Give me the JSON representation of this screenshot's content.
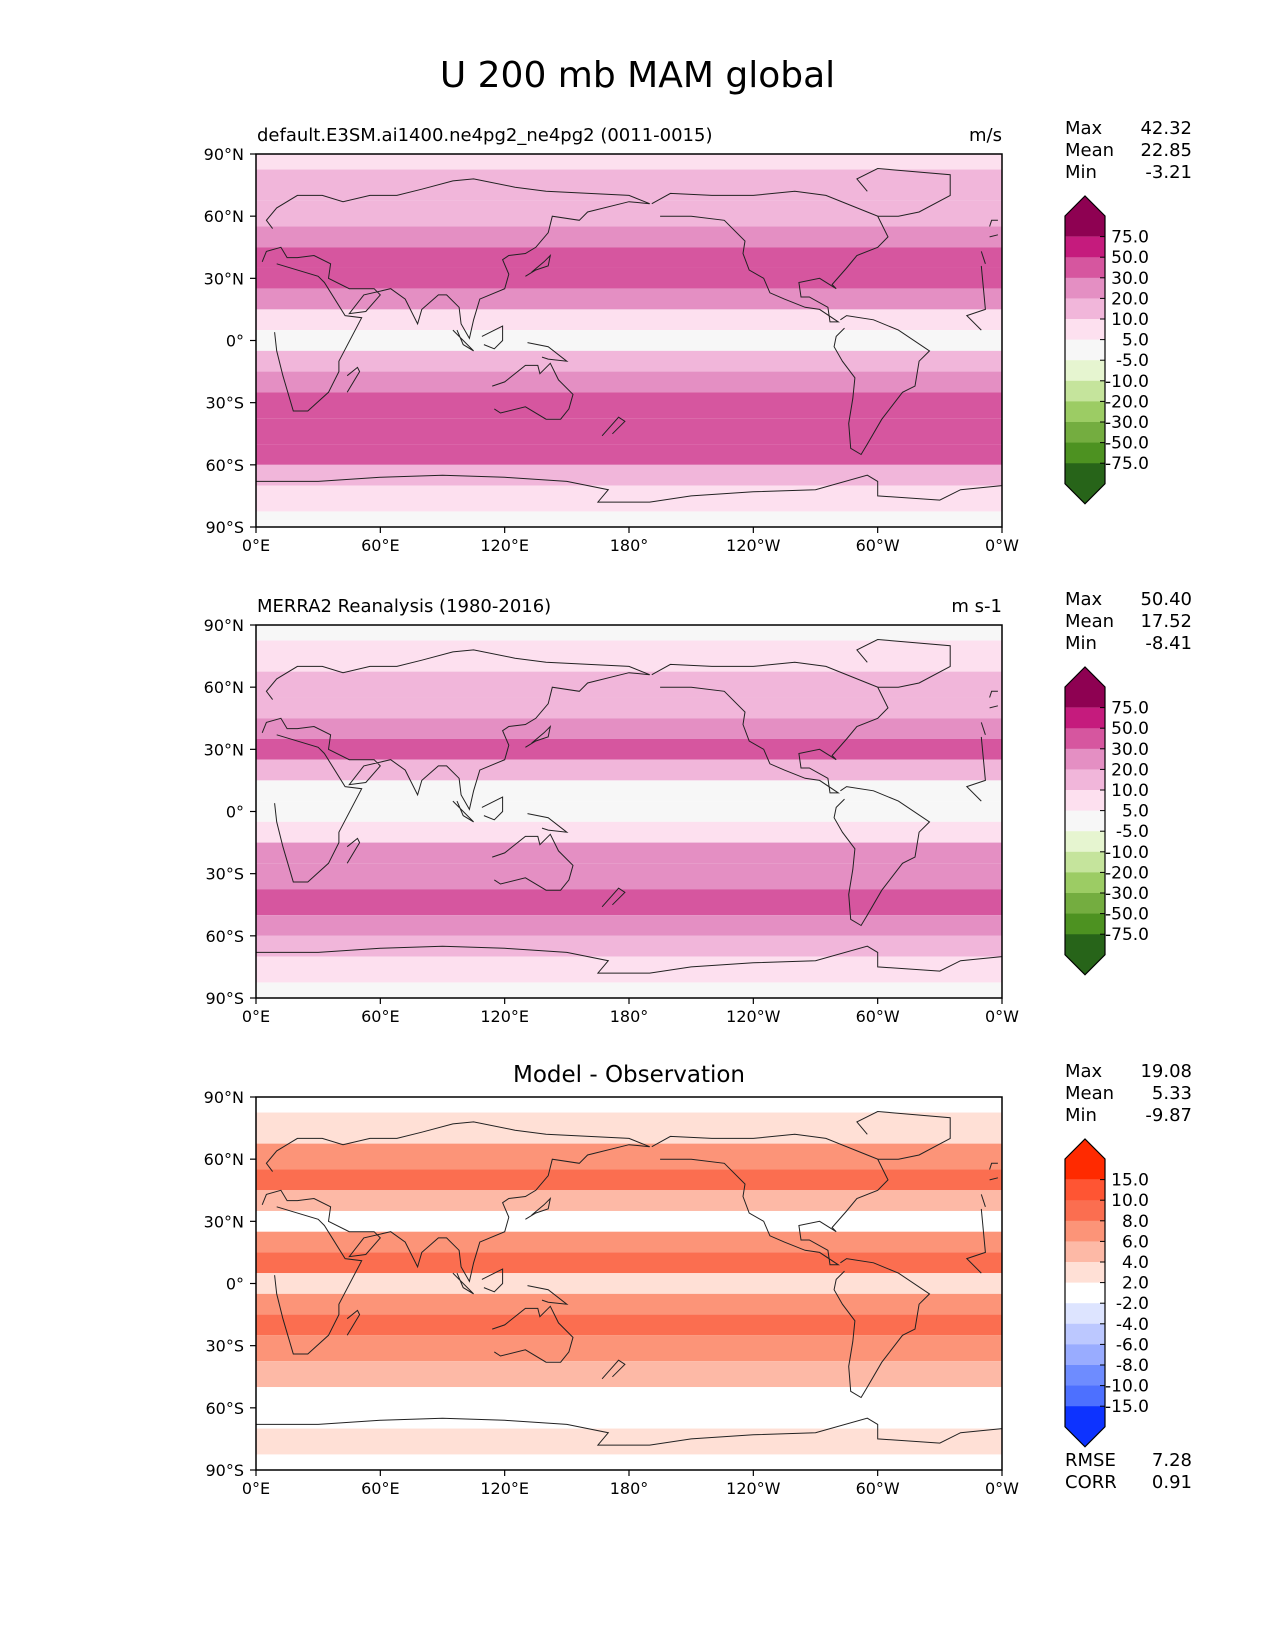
{
  "figure": {
    "title": "U 200 mb MAM global"
  },
  "chart_data": [
    {
      "type": "contour-map",
      "id": "model",
      "title_left": "default.E3SM.ai1400.ne4pg2_ne4pg2 (0011-0015)",
      "title_center": "",
      "title_right": "m/s",
      "stats": {
        "max_label": "Max",
        "max": "42.32",
        "mean_label": "Mean",
        "mean": "22.85",
        "min_label": "Min",
        "min": "-3.21"
      },
      "x_ticks": [
        "0°E",
        "60°E",
        "120°E",
        "180°",
        "120°W",
        "60°W",
        "0°W"
      ],
      "y_ticks": [
        "90°N",
        "60°N",
        "30°N",
        "0°",
        "30°S",
        "60°S",
        "90°S"
      ],
      "xlim": [
        0,
        360
      ],
      "ylim": [
        -90,
        90
      ],
      "colorbar": {
        "levels": [
          "75.0",
          "50.0",
          "30.0",
          "20.0",
          "10.0",
          "5.0",
          "-5.0",
          "-10.0",
          "-20.0",
          "-30.0",
          "-50.0",
          "-75.0"
        ],
        "colors": [
          "#8e0152",
          "#c51b7d",
          "#d6569f",
          "#e48fc3",
          "#f1b6da",
          "#fde0ef",
          "#f7f7f7",
          "#e6f5d0",
          "#c5e49c",
          "#9ccc64",
          "#74ad40",
          "#4d9221",
          "#276419"
        ]
      },
      "bands": [
        {
          "lat": 90,
          "value": 5
        },
        {
          "lat": 75,
          "value": 10
        },
        {
          "lat": 60,
          "value": 15
        },
        {
          "lat": 50,
          "value": 25
        },
        {
          "lat": 40,
          "value": 32
        },
        {
          "lat": 30,
          "value": 35
        },
        {
          "lat": 20,
          "value": 25
        },
        {
          "lat": 10,
          "value": 8
        },
        {
          "lat": 0,
          "value": 3
        },
        {
          "lat": -10,
          "value": 10
        },
        {
          "lat": -20,
          "value": 25
        },
        {
          "lat": -30,
          "value": 35
        },
        {
          "lat": -45,
          "value": 38
        },
        {
          "lat": -55,
          "value": 32
        },
        {
          "lat": -65,
          "value": 15
        },
        {
          "lat": -75,
          "value": 8
        },
        {
          "lat": -90,
          "value": 3
        }
      ],
      "metrics": null
    },
    {
      "type": "contour-map",
      "id": "obs",
      "title_left": "MERRA2 Reanalysis (1980-2016)",
      "title_center": "",
      "title_right": "m s-1",
      "stats": {
        "max_label": "Max",
        "max": "50.40",
        "mean_label": "Mean",
        "mean": "17.52",
        "min_label": "Min",
        "min": "-8.41"
      },
      "x_ticks": [
        "0°E",
        "60°E",
        "120°E",
        "180°",
        "120°W",
        "60°W",
        "0°W"
      ],
      "y_ticks": [
        "90°N",
        "60°N",
        "30°N",
        "0°",
        "30°S",
        "60°S",
        "90°S"
      ],
      "xlim": [
        0,
        360
      ],
      "ylim": [
        -90,
        90
      ],
      "colorbar": {
        "levels": [
          "75.0",
          "50.0",
          "30.0",
          "20.0",
          "10.0",
          "5.0",
          "-5.0",
          "-10.0",
          "-20.0",
          "-30.0",
          "-50.0",
          "-75.0"
        ],
        "colors": [
          "#8e0152",
          "#c51b7d",
          "#d6569f",
          "#e48fc3",
          "#f1b6da",
          "#fde0ef",
          "#f7f7f7",
          "#e6f5d0",
          "#c5e49c",
          "#9ccc64",
          "#74ad40",
          "#4d9221",
          "#276419"
        ]
      },
      "bands": [
        {
          "lat": 90,
          "value": 2
        },
        {
          "lat": 75,
          "value": 8
        },
        {
          "lat": 60,
          "value": 14
        },
        {
          "lat": 50,
          "value": 18
        },
        {
          "lat": 40,
          "value": 24
        },
        {
          "lat": 30,
          "value": 32
        },
        {
          "lat": 20,
          "value": 18
        },
        {
          "lat": 10,
          "value": 4
        },
        {
          "lat": 0,
          "value": 0
        },
        {
          "lat": -10,
          "value": 8
        },
        {
          "lat": -20,
          "value": 20
        },
        {
          "lat": -30,
          "value": 25
        },
        {
          "lat": -45,
          "value": 33
        },
        {
          "lat": -55,
          "value": 25
        },
        {
          "lat": -65,
          "value": 12
        },
        {
          "lat": -75,
          "value": 5
        },
        {
          "lat": -90,
          "value": 2
        }
      ],
      "metrics": null
    },
    {
      "type": "contour-map",
      "id": "diff",
      "title_left": "",
      "title_center": "Model - Observation",
      "title_right": "",
      "stats": {
        "max_label": "Max",
        "max": "19.08",
        "mean_label": "Mean",
        "mean": "5.33",
        "min_label": "Min",
        "min": "-9.87"
      },
      "x_ticks": [
        "0°E",
        "60°E",
        "120°E",
        "180°",
        "120°W",
        "60°W",
        "0°W"
      ],
      "y_ticks": [
        "90°N",
        "60°N",
        "30°N",
        "0°",
        "30°S",
        "60°S",
        "90°S"
      ],
      "xlim": [
        0,
        360
      ],
      "ylim": [
        -90,
        90
      ],
      "colorbar": {
        "levels": [
          "15.0",
          "10.0",
          "8.0",
          "6.0",
          "4.0",
          "2.0",
          "-2.0",
          "-4.0",
          "-6.0",
          "-8.0",
          "-10.0",
          "-15.0"
        ],
        "colors": [
          "#ff2a00",
          "#ff5533",
          "#fb6e50",
          "#fc9478",
          "#fdb9a6",
          "#ffe0d6",
          "#ffffff",
          "#dde4ff",
          "#bcc8ff",
          "#99acff",
          "#6e8cff",
          "#4d70ff",
          "#0d33ff"
        ]
      },
      "bands": [
        {
          "lat": 90,
          "value": 1
        },
        {
          "lat": 75,
          "value": 3
        },
        {
          "lat": 60,
          "value": 6
        },
        {
          "lat": 50,
          "value": 9
        },
        {
          "lat": 40,
          "value": 5
        },
        {
          "lat": 30,
          "value": -1
        },
        {
          "lat": 20,
          "value": 7
        },
        {
          "lat": 10,
          "value": 9
        },
        {
          "lat": 0,
          "value": 3
        },
        {
          "lat": -10,
          "value": 6
        },
        {
          "lat": -20,
          "value": 9
        },
        {
          "lat": -30,
          "value": 7
        },
        {
          "lat": -45,
          "value": 4
        },
        {
          "lat": -55,
          "value": -1
        },
        {
          "lat": -65,
          "value": 1
        },
        {
          "lat": -75,
          "value": 2
        },
        {
          "lat": -90,
          "value": 1
        }
      ],
      "metrics": {
        "rmse_label": "RMSE",
        "rmse": "7.28",
        "corr_label": "CORR",
        "corr": "0.91"
      }
    }
  ]
}
